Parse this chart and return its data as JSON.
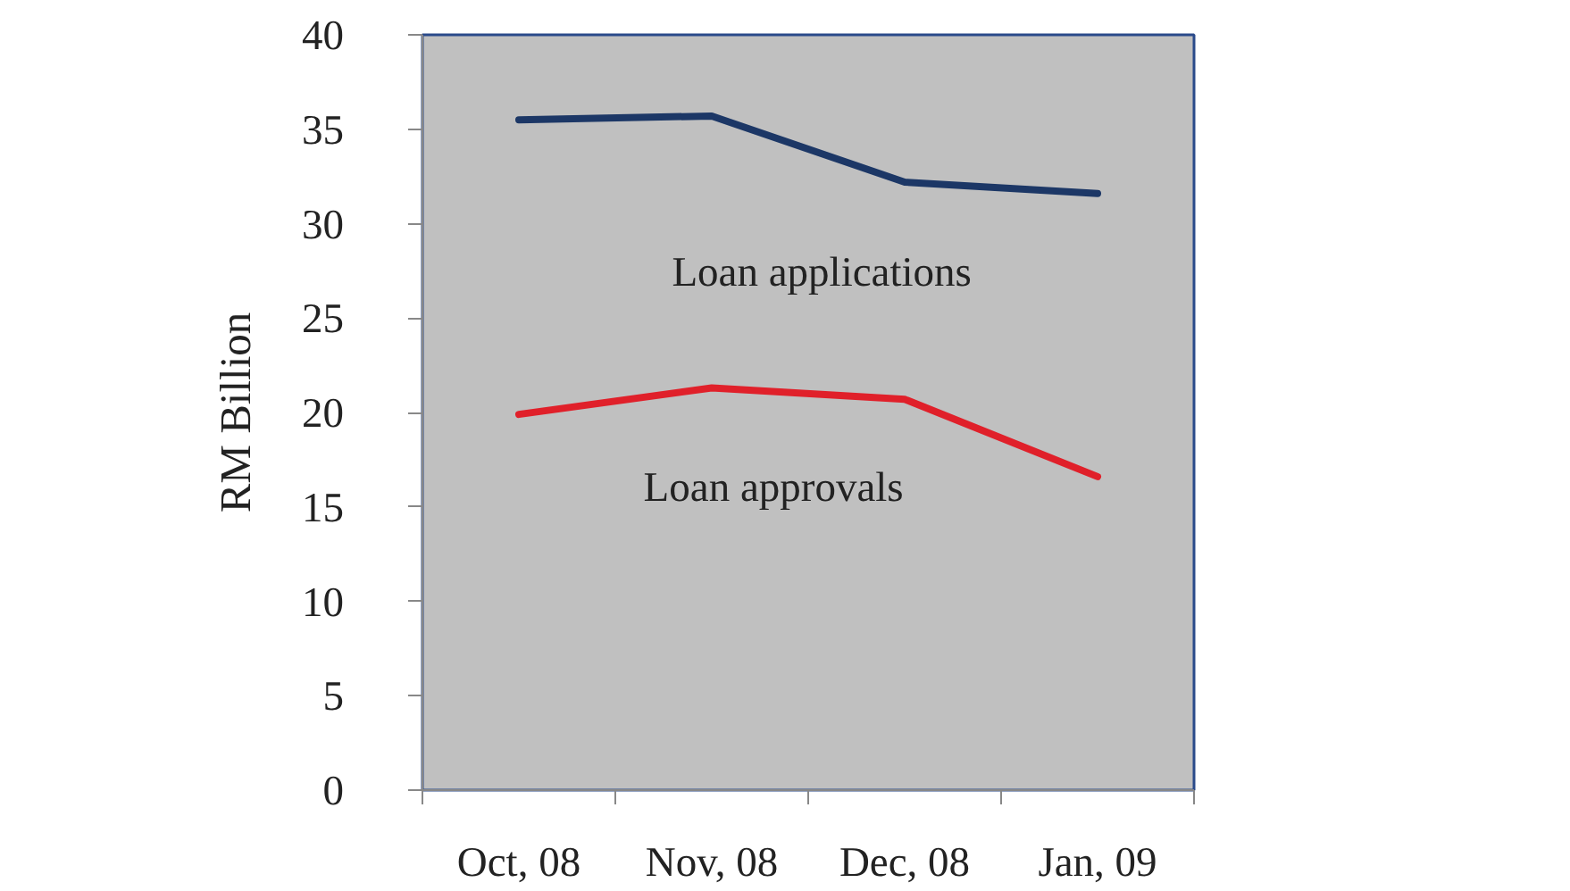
{
  "chart_data": {
    "type": "line",
    "categories": [
      "Oct, 08",
      "Nov, 08",
      "Dec, 08",
      "Jan, 09"
    ],
    "series": [
      {
        "name": "Loan applications",
        "color": "#1c3766",
        "values": [
          35.5,
          35.7,
          32.2,
          31.6
        ]
      },
      {
        "name": "Loan approvals",
        "color": "#e0202a",
        "values": [
          19.9,
          21.3,
          20.7,
          16.6
        ]
      }
    ],
    "ylabel": "RM Billion",
    "ylim": [
      0,
      40
    ],
    "yticks": [
      0,
      5,
      10,
      15,
      20,
      25,
      30,
      35,
      40
    ],
    "grid": false
  }
}
